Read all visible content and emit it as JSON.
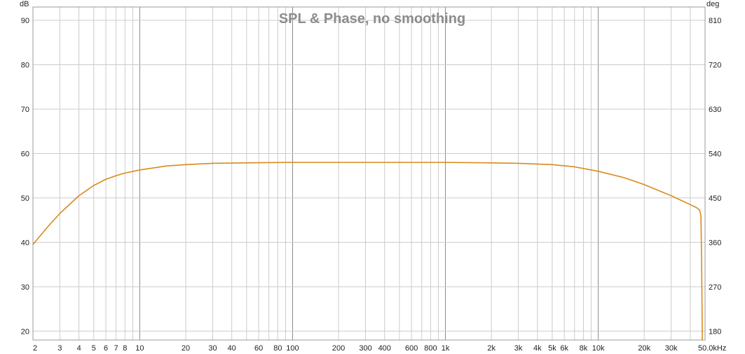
{
  "chart_data": {
    "type": "line",
    "title": "SPL & Phase, no smoothing",
    "left_unit": "dB",
    "right_unit": "deg",
    "x_scale": "log",
    "x_unit_suffix": "kHz",
    "xlim": [
      2,
      50000
    ],
    "ylim": [
      18,
      93
    ],
    "y2lim": [
      162,
      837
    ],
    "grid": true,
    "y_ticks": [
      {
        "value": 90,
        "label": "90"
      },
      {
        "value": 80,
        "label": "80"
      },
      {
        "value": 70,
        "label": "70"
      },
      {
        "value": 60,
        "label": "60"
      },
      {
        "value": 50,
        "label": "50"
      },
      {
        "value": 40,
        "label": "40"
      },
      {
        "value": 30,
        "label": "30"
      },
      {
        "value": 20,
        "label": "20"
      }
    ],
    "y2_ticks": [
      {
        "value": 810,
        "label": "810"
      },
      {
        "value": 720,
        "label": "720"
      },
      {
        "value": 630,
        "label": "630"
      },
      {
        "value": 540,
        "label": "540"
      },
      {
        "value": 450,
        "label": "450"
      },
      {
        "value": 360,
        "label": "360"
      },
      {
        "value": 270,
        "label": "270"
      },
      {
        "value": 180,
        "label": "180"
      }
    ],
    "x_ticks": [
      {
        "value": 2,
        "label": "2"
      },
      {
        "value": 3,
        "label": "3"
      },
      {
        "value": 4,
        "label": "4"
      },
      {
        "value": 5,
        "label": "5"
      },
      {
        "value": 6,
        "label": "6"
      },
      {
        "value": 7,
        "label": "7"
      },
      {
        "value": 8,
        "label": "8"
      },
      {
        "value": 10,
        "label": "10"
      },
      {
        "value": 20,
        "label": "20"
      },
      {
        "value": 30,
        "label": "30"
      },
      {
        "value": 40,
        "label": "40"
      },
      {
        "value": 60,
        "label": "60"
      },
      {
        "value": 80,
        "label": "80"
      },
      {
        "value": 100,
        "label": "100"
      },
      {
        "value": 200,
        "label": "200"
      },
      {
        "value": 300,
        "label": "300"
      },
      {
        "value": 400,
        "label": "400"
      },
      {
        "value": 600,
        "label": "600"
      },
      {
        "value": 800,
        "label": "800"
      },
      {
        "value": 1000,
        "label": "1k"
      },
      {
        "value": 2000,
        "label": "2k"
      },
      {
        "value": 3000,
        "label": "3k"
      },
      {
        "value": 4000,
        "label": "4k"
      },
      {
        "value": 5000,
        "label": "5k"
      },
      {
        "value": 6000,
        "label": "6k"
      },
      {
        "value": 8000,
        "label": "8k"
      },
      {
        "value": 10000,
        "label": "10k"
      },
      {
        "value": 20000,
        "label": "20k"
      },
      {
        "value": 30000,
        "label": "30k"
      },
      {
        "value": 50000,
        "label": "50.0kHz"
      }
    ],
    "series": [
      {
        "color": "#d98a1c",
        "x": [
          2,
          2.5,
          3,
          4,
          5,
          6,
          7,
          8,
          10,
          15,
          20,
          30,
          50,
          100,
          200,
          500,
          1000,
          2000,
          3000,
          5000,
          7000,
          10000,
          15000,
          20000,
          30000,
          40000,
          44000,
          46000,
          47000,
          47500,
          48000
        ],
        "y": [
          39.5,
          43.5,
          46.5,
          50.5,
          52.8,
          54.2,
          55.0,
          55.6,
          56.3,
          57.2,
          57.5,
          57.8,
          57.9,
          58.0,
          58.0,
          58.0,
          58.0,
          57.9,
          57.8,
          57.5,
          57.0,
          56.0,
          54.5,
          53.0,
          50.5,
          48.5,
          47.8,
          47.3,
          46.0,
          35.0,
          18.0
        ]
      }
    ]
  }
}
